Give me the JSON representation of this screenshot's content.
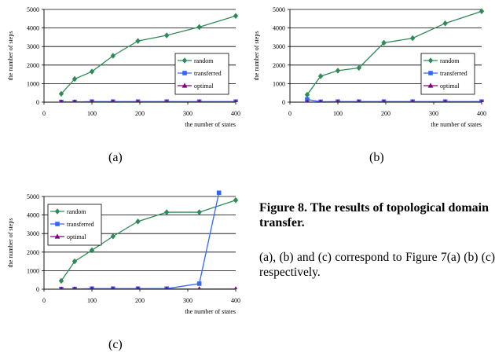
{
  "figure": {
    "title": "Figure 8. The results of topological domain transfer.",
    "caption": "(a), (b) and (c) correspond to Figure 7(a) (b) (c) respectively."
  },
  "chart_data": [
    {
      "panel": "(a)",
      "type": "line",
      "xlabel": "the number of states",
      "ylabel": "the number of steps",
      "xlim": [
        0,
        400
      ],
      "ylim": [
        0,
        5000
      ],
      "xticks": [
        0,
        100,
        200,
        300,
        400
      ],
      "yticks": [
        0,
        1000,
        2000,
        3000,
        4000,
        5000
      ],
      "grid": "horizontal",
      "legend": "right",
      "series": [
        {
          "name": "random",
          "color": "#2e8b57",
          "marker": "diamond",
          "x": [
            36,
            64,
            100,
            144,
            196,
            256,
            324,
            400
          ],
          "y": [
            450,
            1250,
            1650,
            2500,
            3300,
            3600,
            4050,
            4650
          ]
        },
        {
          "name": "transferred",
          "color": "#3366ff",
          "marker": "square",
          "x": [
            36,
            64,
            100,
            144,
            196,
            256,
            324,
            400
          ],
          "y": [
            10,
            10,
            30,
            30,
            30,
            30,
            30,
            30
          ]
        },
        {
          "name": "optimal",
          "color": "#800080",
          "marker": "triangle",
          "x": [
            36,
            64,
            100,
            144,
            196,
            256,
            324,
            400
          ],
          "y": [
            5,
            5,
            10,
            10,
            10,
            10,
            10,
            10
          ]
        }
      ]
    },
    {
      "panel": "(b)",
      "type": "line",
      "xlabel": "the number of states",
      "ylabel": "the number of steps",
      "xlim": [
        0,
        400
      ],
      "ylim": [
        0,
        5000
      ],
      "xticks": [
        0,
        100,
        200,
        300,
        400
      ],
      "yticks": [
        0,
        1000,
        2000,
        3000,
        4000,
        5000
      ],
      "grid": "horizontal",
      "legend": "right",
      "series": [
        {
          "name": "random",
          "color": "#2e8b57",
          "marker": "diamond",
          "x": [
            36,
            64,
            100,
            144,
            196,
            256,
            324,
            400
          ],
          "y": [
            400,
            1400,
            1700,
            1850,
            3200,
            3450,
            4250,
            4900
          ]
        },
        {
          "name": "transferred",
          "color": "#3366ff",
          "marker": "square",
          "x": [
            36,
            64,
            100,
            144,
            196,
            256,
            324,
            400
          ],
          "y": [
            150,
            20,
            30,
            30,
            30,
            30,
            30,
            30
          ]
        },
        {
          "name": "optimal",
          "color": "#800080",
          "marker": "triangle",
          "x": [
            36,
            64,
            100,
            144,
            196,
            256,
            324,
            400
          ],
          "y": [
            5,
            5,
            10,
            10,
            10,
            10,
            10,
            10
          ]
        }
      ]
    },
    {
      "panel": "(c)",
      "type": "line",
      "xlabel": "the number of states",
      "ylabel": "the number of steps",
      "xlim": [
        0,
        400
      ],
      "ylim": [
        0,
        5000
      ],
      "xticks": [
        0,
        100,
        200,
        300,
        400
      ],
      "yticks": [
        0,
        1000,
        2000,
        3000,
        4000,
        5000
      ],
      "grid": "horizontal",
      "legend": "top-left",
      "series": [
        {
          "name": "random",
          "color": "#2e8b57",
          "marker": "diamond",
          "x": [
            36,
            64,
            100,
            144,
            196,
            256,
            324,
            400
          ],
          "y": [
            450,
            1500,
            2100,
            2850,
            3650,
            4150,
            4150,
            4800
          ]
        },
        {
          "name": "transferred",
          "color": "#3366ff",
          "marker": "square",
          "x": [
            36,
            64,
            100,
            144,
            196,
            256,
            324,
            365
          ],
          "y": [
            10,
            10,
            30,
            30,
            30,
            30,
            300,
            5200
          ]
        },
        {
          "name": "optimal",
          "color": "#800080",
          "marker": "triangle",
          "x": [
            36,
            64,
            100,
            144,
            196,
            256,
            324,
            400
          ],
          "y": [
            5,
            5,
            10,
            10,
            10,
            10,
            10,
            10
          ]
        }
      ]
    }
  ]
}
